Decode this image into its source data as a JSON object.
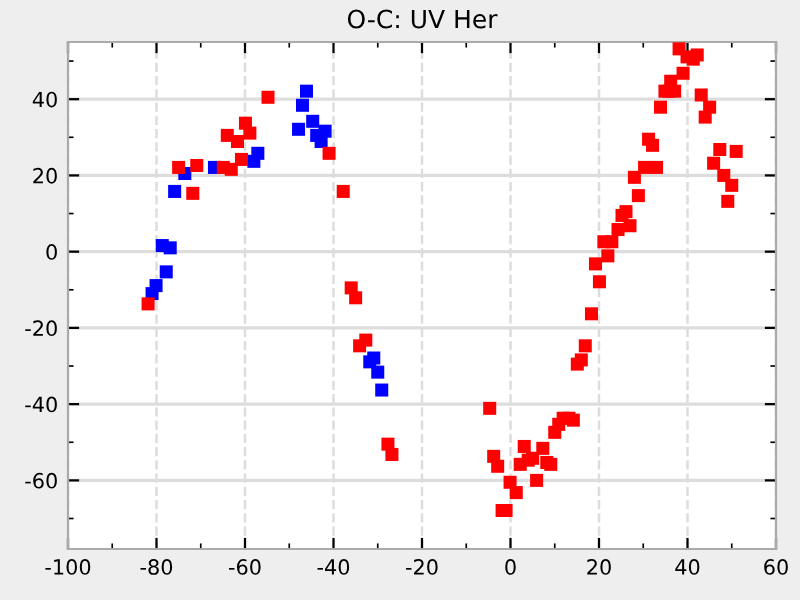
{
  "chart_data": {
    "type": "scatter",
    "title": "O-C: UV Her",
    "marker": "square",
    "grid": true,
    "xlim": [
      -100,
      60
    ],
    "ylim": [
      -78,
      55
    ],
    "xticks": [
      -100,
      {
        "value": -90,
        "label": null
      },
      -80,
      {
        "value": -70,
        "label": null
      },
      -60,
      {
        "value": -50,
        "label": null
      },
      -40,
      {
        "value": -30,
        "label": null
      },
      -20,
      {
        "value": -10,
        "label": null
      },
      0,
      {
        "value": 10,
        "label": null
      },
      20,
      {
        "value": 30,
        "label": null
      },
      40,
      {
        "value": 50,
        "label": null
      },
      60
    ],
    "yticks": [
      {
        "value": -70,
        "label": null
      },
      -60,
      {
        "value": -50,
        "label": null
      },
      -40,
      {
        "value": -30,
        "label": null
      },
      -20,
      {
        "value": -10,
        "label": null
      },
      0,
      {
        "value": 10,
        "label": null
      },
      20,
      {
        "value": 30,
        "label": null
      },
      40,
      {
        "value": 50,
        "label": null
      }
    ],
    "series": [
      {
        "color": "#0000ff",
        "x": [
          -73.6,
          -75.9,
          -78.7,
          -76.9,
          -77.8,
          -80.1,
          -81.0,
          -66.9,
          -58.0,
          -57.1,
          -47.9,
          -47.0,
          -46.1,
          -44.7,
          -43.8,
          -42.8,
          -41.9,
          -31.8,
          -30.9,
          -30.0,
          -29.1
        ],
        "values": [
          20.5,
          15.8,
          1.6,
          1.0,
          -5.3,
          -8.9,
          -11.0,
          22.1,
          23.7,
          25.8,
          32.1,
          38.4,
          42.1,
          34.2,
          30.5,
          28.9,
          31.6,
          -28.9,
          -27.9,
          -31.6,
          -36.3
        ]
      },
      {
        "color": "#ff0000",
        "x": [
          -81.9,
          -75.0,
          -71.8,
          -70.9,
          -64.9,
          -64.0,
          -63.1,
          -61.7,
          -60.8,
          -59.9,
          -58.9,
          -54.8,
          -41.0,
          -37.8,
          -36.0,
          -35.0,
          -34.1,
          -32.7,
          -27.7,
          -26.8,
          -4.7,
          -3.8,
          -2.9,
          -1.9,
          -1.0,
          -0.1,
          1.3,
          2.2,
          3.1,
          4.0,
          5.0,
          5.9,
          7.3,
          8.2,
          9.1,
          10.0,
          10.9,
          11.9,
          13.2,
          14.2,
          15.1,
          16.0,
          16.9,
          18.3,
          19.2,
          20.1,
          21.1,
          22.0,
          22.9,
          24.3,
          25.2,
          26.1,
          27.0,
          28.0,
          28.9,
          30.3,
          31.2,
          32.1,
          33.0,
          33.9,
          34.9,
          35.8,
          36.2,
          37.1,
          38.1,
          39.0,
          39.9,
          41.3,
          42.2,
          43.1,
          44.0,
          45.0,
          45.9,
          47.3,
          48.2,
          49.1,
          50.0,
          51.0
        ],
        "values": [
          -13.7,
          22.1,
          15.3,
          22.6,
          22.1,
          30.5,
          21.6,
          28.9,
          24.2,
          33.7,
          31.1,
          40.5,
          25.8,
          15.8,
          -9.5,
          -12.1,
          -24.7,
          -23.2,
          -50.5,
          -53.2,
          -41.1,
          -53.7,
          -56.3,
          -67.9,
          -67.9,
          -60.5,
          -63.2,
          -55.8,
          -51.1,
          -54.7,
          -54.2,
          -60.0,
          -51.6,
          -55.3,
          -55.8,
          -47.4,
          -45.3,
          -43.7,
          -43.7,
          -44.2,
          -29.5,
          -28.4,
          -24.7,
          -16.3,
          -3.2,
          -7.9,
          2.6,
          -1.1,
          2.6,
          5.8,
          9.5,
          10.5,
          6.8,
          19.5,
          14.7,
          22.1,
          29.5,
          27.9,
          22.1,
          37.9,
          42.1,
          42.1,
          44.7,
          42.1,
          53.2,
          46.8,
          51.1,
          50.5,
          51.6,
          41.1,
          35.3,
          37.9,
          23.2,
          26.8,
          20.0,
          13.2,
          17.4,
          26.3
        ]
      }
    ]
  }
}
